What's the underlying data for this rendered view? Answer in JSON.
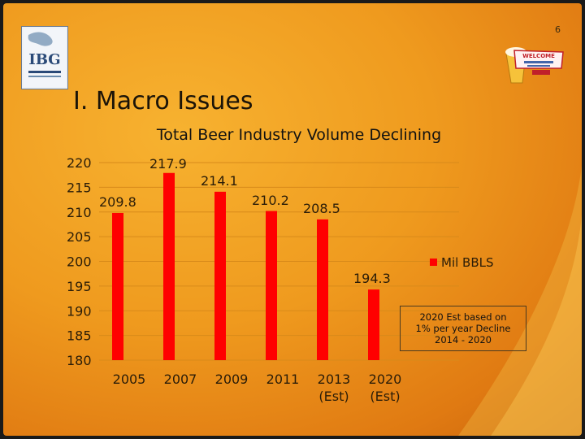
{
  "page_number": "6",
  "slide_title": "I. Macro Issues",
  "logos": {
    "left": "IBG",
    "right": "WELCOME"
  },
  "note": {
    "line1": "2020 Est based on",
    "line2": "1% per year Decline",
    "line3": "2014 - 2020"
  },
  "colors": {
    "bar": "#ff0000",
    "background": "#ef9a1e"
  },
  "chart_data": {
    "type": "bar",
    "title": "Total Beer Industry Volume Declining",
    "categories": [
      [
        "2005"
      ],
      [
        "2007"
      ],
      [
        "2009"
      ],
      [
        "2011"
      ],
      [
        "2013",
        "(Est)"
      ],
      [
        "2020",
        "(Est)"
      ]
    ],
    "series": [
      {
        "name": "Mil BBLS",
        "values": [
          209.8,
          217.9,
          214.1,
          210.2,
          208.5,
          194.3
        ]
      }
    ],
    "ylim": [
      180,
      220
    ],
    "yticks": [
      "220",
      "215",
      "210",
      "205",
      "200",
      "195",
      "190",
      "185",
      "180"
    ],
    "data_labels": [
      "209.8",
      "217.9",
      "214.1",
      "210.2",
      "208.5",
      "194.3"
    ],
    "legend_position": "right",
    "grid": true
  }
}
